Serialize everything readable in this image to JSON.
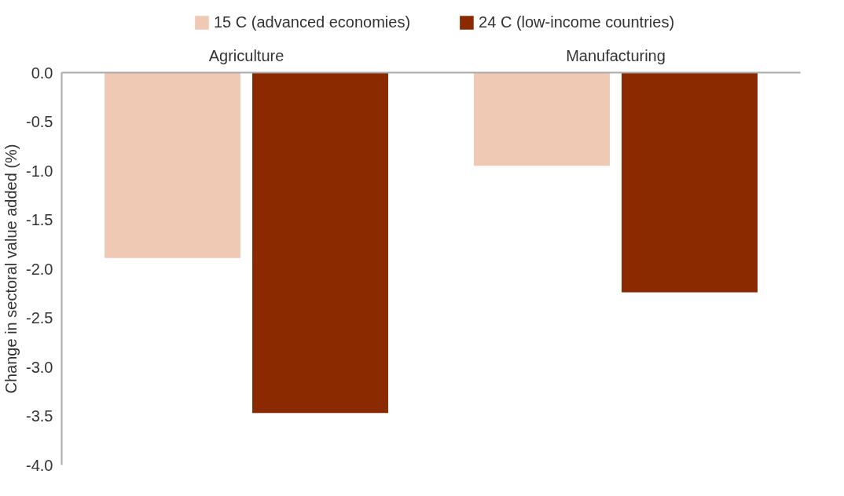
{
  "chart_data": {
    "type": "bar",
    "ylabel": "Change in sectoral value added (%)",
    "categories": [
      "Agriculture",
      "Manufacturing"
    ],
    "series": [
      {
        "name": "15 C (advanced economies)",
        "color": "#f0c9b4",
        "values": [
          -1.89,
          -0.95
        ]
      },
      {
        "name": "24 C (low-income countries)",
        "color": "#8b2a00",
        "values": [
          -3.47,
          -2.24
        ]
      }
    ],
    "ylim": [
      -4,
      0
    ],
    "yticks": [
      {
        "value": 0,
        "label": "0.0"
      },
      {
        "value": -0.5,
        "label": "-0.5"
      },
      {
        "value": -1,
        "label": "-1.0"
      },
      {
        "value": -1.5,
        "label": "-1.5"
      },
      {
        "value": -2,
        "label": "-2.0"
      },
      {
        "value": -2.5,
        "label": "-2.5"
      },
      {
        "value": -3,
        "label": "-3.0"
      },
      {
        "value": -3.5,
        "label": "-3.5"
      },
      {
        "value": -4,
        "label": "-4.0"
      }
    ],
    "grid": false,
    "legend": "top"
  }
}
